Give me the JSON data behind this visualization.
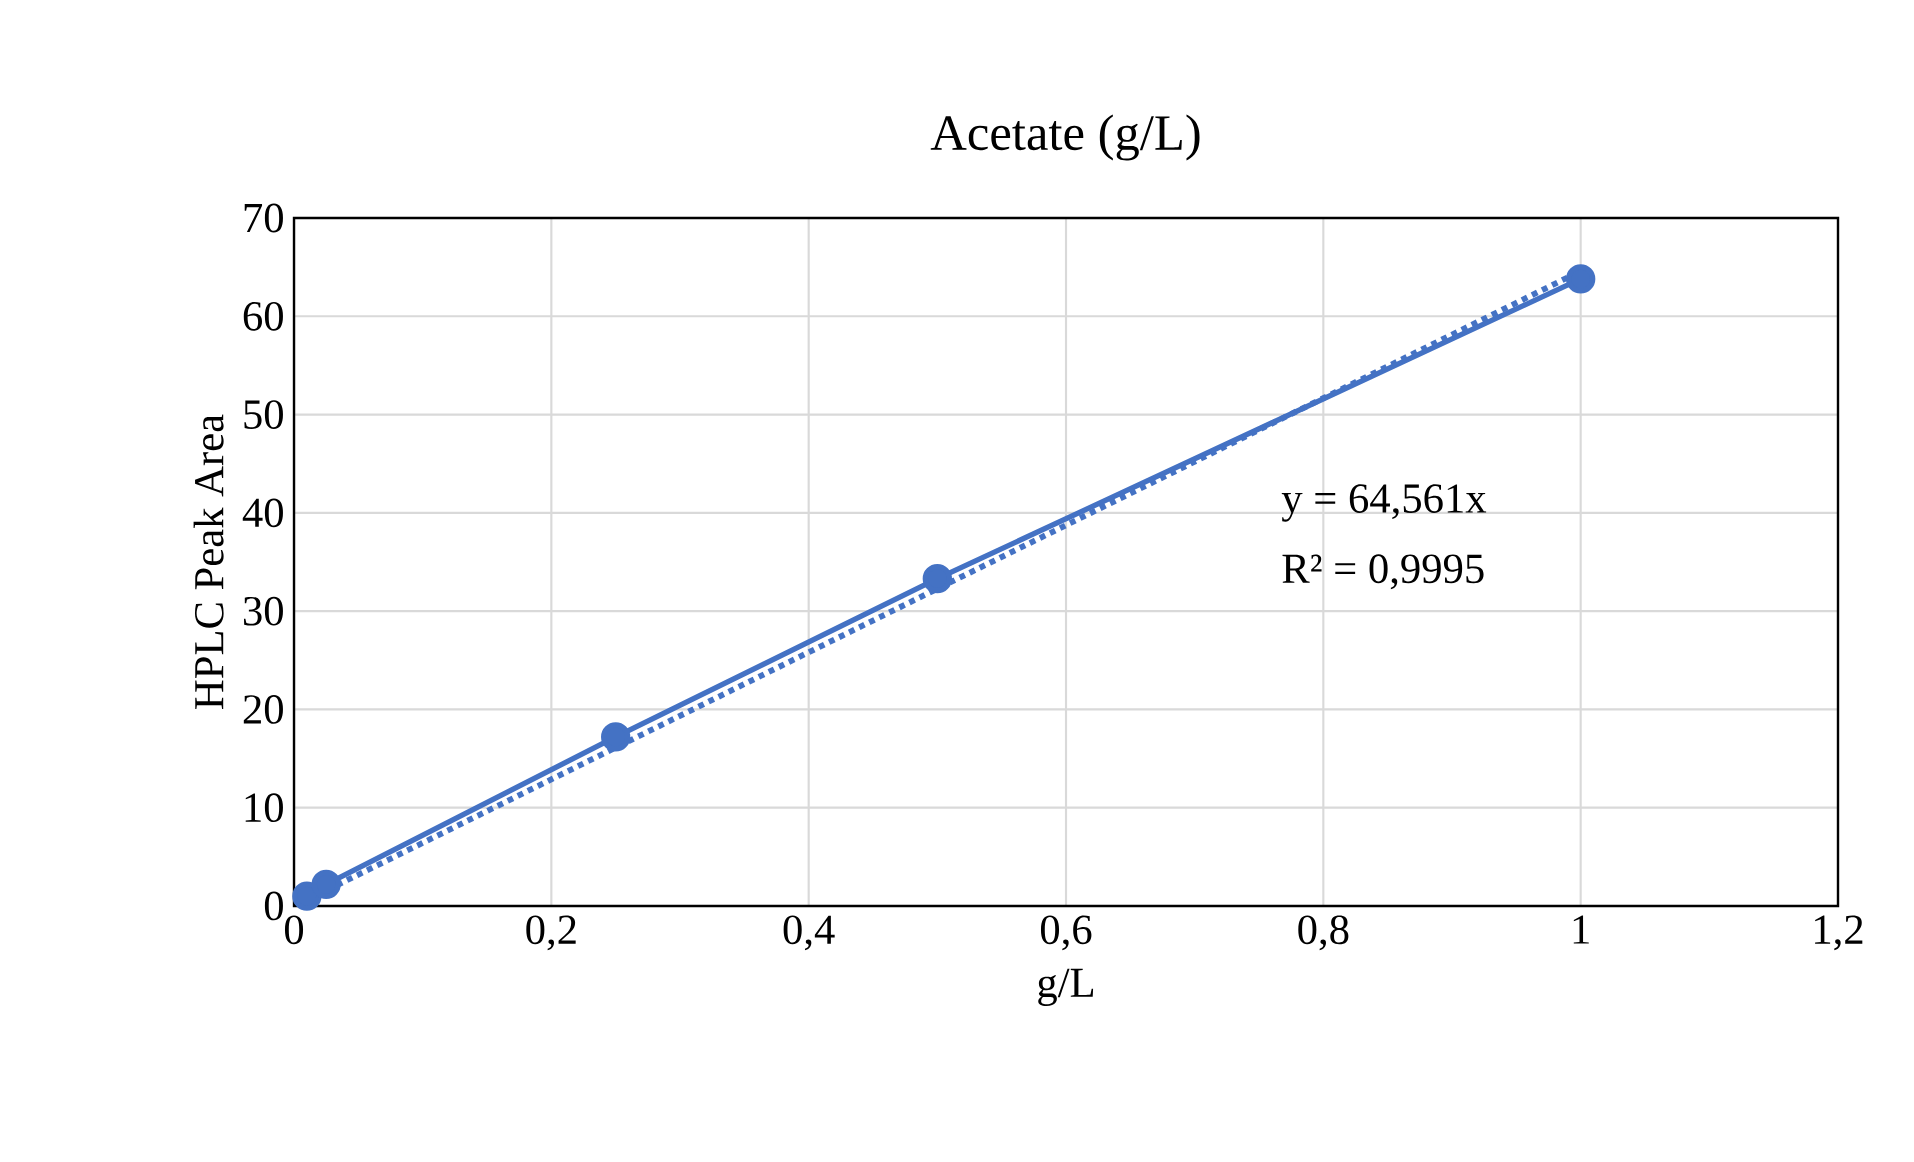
{
  "chart_data": {
    "type": "line",
    "title": "Acetate (g/L)",
    "xlabel": "g/L",
    "ylabel": "HPLC Peak Area",
    "series": [
      {
        "color": "#4472c4",
        "x": [
          0.01,
          0.025,
          0.25,
          0.5,
          1
        ],
        "values": [
          1.0,
          2.2,
          17.2,
          33.3,
          63.8
        ],
        "marker": "circle",
        "line_style": "solid"
      },
      {
        "type": "line",
        "color": "#4472c4",
        "x": [
          0.01,
          1
        ],
        "values": [
          0.6,
          64.6
        ],
        "marker": "none",
        "line_style": "dotted"
      }
    ],
    "xlim": [
      0,
      1.2
    ],
    "ylim": [
      0,
      70
    ],
    "xticks": [
      0,
      {
        "value": 0.2,
        "label": "0,2"
      },
      {
        "value": 0.4,
        "label": "0,4"
      },
      {
        "value": 0.6,
        "label": "0,6"
      },
      {
        "value": 0.8,
        "label": "0,8"
      },
      1,
      {
        "value": 1.2,
        "label": "1,2"
      }
    ],
    "yticks": [
      0,
      10,
      20,
      30,
      40,
      50,
      60,
      70
    ],
    "grid": true,
    "annotations": [
      "y = 64,561x",
      "R² = 0,9995"
    ]
  }
}
